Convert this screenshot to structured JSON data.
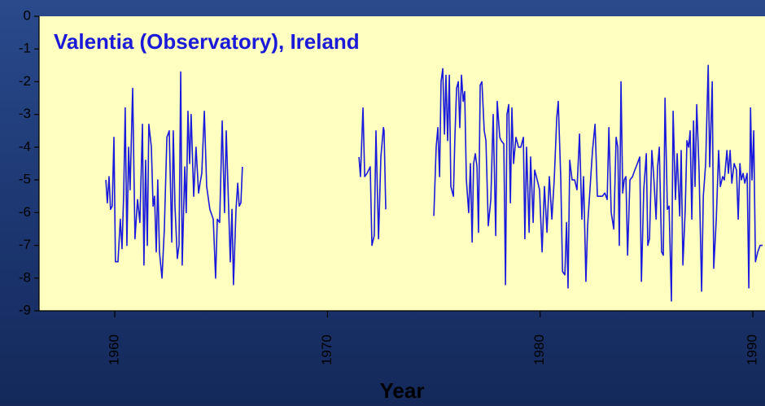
{
  "chart_data": {
    "type": "line",
    "title": "Valentia (Observatory), Ireland",
    "x_label": "Year",
    "color": "#1a1adc",
    "xlim": [
      1956.44,
      1990.57
    ],
    "xticks": [
      1960,
      1970,
      1980,
      1990
    ],
    "ylim": [
      -9,
      0
    ],
    "yticks": [
      0,
      -1,
      -2,
      -3,
      -4,
      -5,
      -6,
      -7,
      -8,
      -9
    ],
    "x": [
      1959.58,
      1959.65,
      1959.73,
      1959.8,
      1959.88,
      1959.96,
      1960.03,
      1960.15,
      1960.26,
      1960.34,
      1960.42,
      1960.49,
      1960.57,
      1960.65,
      1960.72,
      1960.84,
      1960.95,
      1961.07,
      1961.18,
      1961.3,
      1961.37,
      1961.45,
      1961.53,
      1961.6,
      1961.72,
      1961.8,
      1961.87,
      1961.95,
      1962.02,
      1962.1,
      1962.22,
      1962.33,
      1962.45,
      1962.56,
      1962.68,
      1962.75,
      1962.83,
      1962.94,
      1963.02,
      1963.1,
      1963.17,
      1963.29,
      1963.36,
      1963.44,
      1963.52,
      1963.59,
      1963.71,
      1963.82,
      1963.94,
      1964.01,
      1964.09,
      1964.21,
      1964.32,
      1964.47,
      1964.63,
      1964.74,
      1964.82,
      1964.93,
      1965.05,
      1965.16,
      1965.24,
      1965.35,
      1965.43,
      1965.51,
      1965.58,
      1965.7,
      1965.78,
      1965.85,
      1965.93,
      1966.0,
      1968.5,
      1971.48,
      1971.55,
      1971.67,
      1971.75,
      1971.86,
      1972.01,
      1972.09,
      1972.2,
      1972.28,
      1972.4,
      1972.51,
      1972.63,
      1972.66,
      1972.74,
      1973.5,
      1975.0,
      1975.11,
      1975.19,
      1975.27,
      1975.34,
      1975.42,
      1975.5,
      1975.57,
      1975.65,
      1975.73,
      1975.8,
      1975.92,
      1975.99,
      1976.07,
      1976.15,
      1976.22,
      1976.3,
      1976.38,
      1976.45,
      1976.53,
      1976.64,
      1976.72,
      1976.8,
      1976.87,
      1976.95,
      1977.03,
      1977.1,
      1977.18,
      1977.26,
      1977.37,
      1977.45,
      1977.56,
      1977.68,
      1977.79,
      1977.91,
      1977.98,
      1978.1,
      1978.17,
      1978.29,
      1978.37,
      1978.44,
      1978.52,
      1978.6,
      1978.67,
      1978.75,
      1978.86,
      1978.98,
      1979.09,
      1979.21,
      1979.28,
      1979.36,
      1979.48,
      1979.55,
      1979.67,
      1979.74,
      1979.86,
      1979.97,
      1980.09,
      1980.2,
      1980.32,
      1980.43,
      1980.55,
      1980.66,
      1980.78,
      1980.85,
      1980.97,
      1981.05,
      1981.16,
      1981.24,
      1981.31,
      1981.39,
      1981.5,
      1981.62,
      1981.73,
      1981.85,
      1981.96,
      1982.04,
      1982.15,
      1982.23,
      1982.35,
      1982.46,
      1982.58,
      1982.69,
      1982.92,
      1983.04,
      1983.15,
      1983.23,
      1983.34,
      1983.46,
      1983.57,
      1983.65,
      1983.72,
      1983.8,
      1983.88,
      1983.95,
      1984.03,
      1984.11,
      1984.22,
      1984.34,
      1984.45,
      1984.57,
      1984.68,
      1984.76,
      1984.87,
      1984.99,
      1985.06,
      1985.14,
      1985.25,
      1985.33,
      1985.45,
      1985.52,
      1985.6,
      1985.71,
      1985.79,
      1985.87,
      1985.98,
      1986.06,
      1986.17,
      1986.25,
      1986.36,
      1986.44,
      1986.56,
      1986.63,
      1986.71,
      1986.82,
      1986.9,
      1986.98,
      1987.05,
      1987.13,
      1987.21,
      1987.28,
      1987.36,
      1987.47,
      1987.59,
      1987.67,
      1987.78,
      1987.9,
      1987.97,
      1988.09,
      1988.16,
      1988.28,
      1988.39,
      1988.47,
      1988.58,
      1988.66,
      1988.78,
      1988.85,
      1988.93,
      1989.01,
      1989.12,
      1989.23,
      1989.31,
      1989.39,
      1989.46,
      1989.54,
      1989.62,
      1989.73,
      1989.81,
      1989.89,
      1989.96,
      1990.04,
      1990.12,
      1990.23,
      1990.34,
      1990.46
    ],
    "values": [
      -5.0,
      -5.7,
      -4.9,
      -5.9,
      -5.8,
      -3.7,
      -7.5,
      -7.5,
      -6.2,
      -7.1,
      -5.4,
      -2.8,
      -7.0,
      -4.0,
      -5.3,
      -2.2,
      -6.8,
      -5.6,
      -6.3,
      -3.3,
      -7.6,
      -4.4,
      -7.0,
      -3.3,
      -4.0,
      -5.8,
      -5.5,
      -7.2,
      -5.0,
      -7.2,
      -8.0,
      -6.5,
      -3.7,
      -3.5,
      -6.9,
      -3.5,
      -5.8,
      -7.4,
      -7.0,
      -1.7,
      -7.6,
      -4.6,
      -6.0,
      -2.9,
      -4.5,
      -3.0,
      -5.5,
      -4.0,
      -5.4,
      -5.1,
      -4.8,
      -2.9,
      -5.2,
      -5.9,
      -6.2,
      -8.0,
      -6.2,
      -6.3,
      -3.2,
      -6.0,
      -3.5,
      -5.8,
      -7.5,
      -5.9,
      -8.2,
      -5.9,
      -5.1,
      -5.8,
      -5.7,
      -4.6,
      null,
      -4.3,
      -4.9,
      -2.8,
      -4.9,
      -4.8,
      -4.6,
      -7.0,
      -6.7,
      -3.5,
      -6.8,
      -4.3,
      -3.4,
      -3.5,
      -5.9,
      null,
      -6.1,
      -4.0,
      -3.4,
      -4.9,
      -2.0,
      -1.6,
      -3.6,
      -1.8,
      -3.8,
      -1.8,
      -5.2,
      -5.5,
      -3.7,
      -2.2,
      -2.0,
      -3.4,
      -1.8,
      -2.6,
      -2.3,
      -5.0,
      -6.0,
      -4.5,
      -6.9,
      -4.5,
      -4.2,
      -4.6,
      -6.6,
      -2.1,
      -2.0,
      -3.5,
      -3.8,
      -6.4,
      -5.6,
      -3.0,
      -6.7,
      -2.6,
      -3.7,
      -3.8,
      -3.9,
      -8.2,
      -3.0,
      -2.7,
      -5.7,
      -2.8,
      -4.5,
      -3.7,
      -4.0,
      -4.0,
      -3.7,
      -6.8,
      -4.0,
      -6.6,
      -4.3,
      -6.3,
      -4.7,
      -5.0,
      -5.3,
      -7.2,
      -5.2,
      -6.6,
      -4.9,
      -6.2,
      -5.0,
      -3.1,
      -2.6,
      -5.0,
      -7.8,
      -7.9,
      -6.3,
      -8.3,
      -4.4,
      -5.0,
      -5.0,
      -5.3,
      -3.6,
      -6.2,
      -4.9,
      -8.1,
      -6.4,
      -5.2,
      -4.1,
      -3.3,
      -5.5,
      -5.5,
      -5.4,
      -5.6,
      -3.4,
      -6.0,
      -6.5,
      -3.7,
      -4.0,
      -7.0,
      -2.0,
      -5.4,
      -5.0,
      -4.9,
      -7.3,
      -5.0,
      -4.9,
      -4.7,
      -4.5,
      -4.3,
      -8.1,
      -5.3,
      -4.2,
      -7.0,
      -6.8,
      -4.1,
      -4.8,
      -6.2,
      -4.6,
      -4.0,
      -7.2,
      -7.3,
      -2.5,
      -5.9,
      -5.8,
      -8.7,
      -2.9,
      -5.6,
      -4.2,
      -6.1,
      -4.1,
      -7.6,
      -5.9,
      -3.8,
      -4.0,
      -3.5,
      -6.2,
      -3.2,
      -5.2,
      -2.7,
      -4.7,
      -8.4,
      -5.5,
      -4.5,
      -1.5,
      -4.6,
      -2.0,
      -7.7,
      -6.2,
      -4.1,
      -5.2,
      -4.9,
      -5.0,
      -4.1,
      -4.8,
      -4.1,
      -5.1,
      -4.5,
      -4.7,
      -6.2,
      -4.5,
      -5.0,
      -4.8,
      -5.1,
      -4.8,
      -8.3,
      -2.8,
      -5.0,
      -3.5,
      -7.5,
      -7.2,
      -7.0,
      -7.0
    ]
  }
}
